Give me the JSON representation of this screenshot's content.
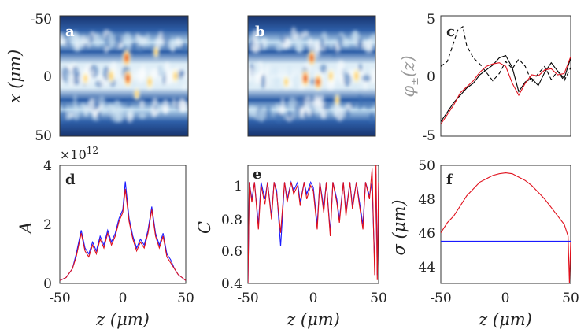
{
  "figure": {
    "shared_z_label": "z (μm)"
  },
  "chart_data": [
    {
      "id": "a",
      "type": "heatmap",
      "panel_label": "a",
      "ylabel": "x (μm)",
      "xlabel": "",
      "yticks": [
        "-50",
        "0",
        "50"
      ],
      "ylim": [
        -50,
        50
      ],
      "xlim": [
        -50,
        50
      ],
      "description_series": [
        {
          "name": "intensity",
          "values": [
            0.2,
            0.5,
            0.8,
            1.0,
            0.7,
            0.4
          ]
        }
      ],
      "hotspots": [
        {
          "z": 2,
          "x": -15,
          "v": 1.0
        },
        {
          "z": 3,
          "x": 2,
          "v": 1.0
        },
        {
          "z": -10,
          "x": 0,
          "v": 0.7
        },
        {
          "z": 20,
          "x": 5,
          "v": 0.7
        },
        {
          "z": 40,
          "x": 0,
          "v": 0.6
        },
        {
          "z": -30,
          "x": 2,
          "v": 0.5
        },
        {
          "z": 25,
          "x": -20,
          "v": 0.5
        },
        {
          "z": 10,
          "x": 15,
          "v": 0.5
        }
      ]
    },
    {
      "id": "b",
      "type": "heatmap",
      "panel_label": "b",
      "ylabel": "",
      "xlabel": "",
      "ylim": [
        -50,
        50
      ],
      "xlim": [
        -50,
        50
      ],
      "hotspots": [
        {
          "z": 0,
          "x": -15,
          "v": 0.9
        },
        {
          "z": -5,
          "x": 2,
          "v": 1.0
        },
        {
          "z": 5,
          "x": 5,
          "v": 0.9
        },
        {
          "z": 35,
          "x": 0,
          "v": 0.8
        },
        {
          "z": 15,
          "x": 0,
          "v": 0.6
        },
        {
          "z": -20,
          "x": 5,
          "v": 0.5
        },
        {
          "z": 20,
          "x": 20,
          "v": 0.5
        }
      ]
    },
    {
      "id": "c",
      "type": "line",
      "panel_label": "c",
      "ylabel": "φ±(z)",
      "ylabel_main": "φ",
      "ylabel_sub": "±",
      "ylabel_arg": "(z)",
      "yticks": [
        "5",
        "0",
        "-5"
      ],
      "ylim": [
        -5,
        5
      ],
      "xlim": [
        -50,
        50
      ],
      "series": [
        {
          "name": "phi_minus_dashed",
          "color": "#000000",
          "style": "dashed",
          "x": [
            -50,
            -45,
            -40,
            -37,
            -33,
            -30,
            -25,
            -20,
            -15,
            -10,
            -5,
            0,
            5,
            10,
            15,
            20,
            25,
            30,
            35,
            40,
            45,
            50
          ],
          "y": [
            0.8,
            1.2,
            2.8,
            3.8,
            4.1,
            2.5,
            1.5,
            1.0,
            0.3,
            -0.4,
            0.2,
            1.2,
            0.6,
            1.4,
            0.8,
            -0.5,
            0.2,
            0.8,
            -0.3,
            0.4,
            -0.4,
            0.7
          ]
        },
        {
          "name": "phi_plus_black",
          "color": "#000000",
          "style": "solid",
          "x": [
            -50,
            -45,
            -40,
            -35,
            -30,
            -25,
            -20,
            -15,
            -10,
            -5,
            0,
            5,
            10,
            15,
            20,
            25,
            30,
            35,
            40,
            45,
            50
          ],
          "y": [
            -3.8,
            -3.0,
            -2.2,
            -1.6,
            -1.0,
            -0.6,
            0.1,
            0.5,
            0.9,
            1.5,
            1.7,
            0.7,
            -1.3,
            -0.5,
            -0.2,
            -0.8,
            0.3,
            1.1,
            0.4,
            -0.2,
            1.5
          ]
        },
        {
          "name": "phi_plus_red",
          "color": "#e0101c",
          "style": "solid",
          "x": [
            -50,
            -45,
            -40,
            -35,
            -30,
            -25,
            -20,
            -15,
            -10,
            -5,
            0,
            5,
            10,
            15,
            20,
            25,
            30,
            35,
            40,
            45,
            50
          ],
          "y": [
            -4.0,
            -3.2,
            -2.4,
            -1.4,
            -0.9,
            -0.4,
            0.3,
            0.8,
            1.0,
            1.1,
            0.8,
            -0.6,
            -1.6,
            -0.6,
            0.1,
            0.0,
            0.5,
            0.6,
            0.1,
            0.2,
            1.6
          ]
        }
      ]
    },
    {
      "id": "d",
      "type": "line",
      "panel_label": "d",
      "ylabel": "A",
      "xlabel": "z (μm)",
      "xlabel_var": "z",
      "xlabel_unit": "(μm)",
      "scale_label": "×10",
      "scale_exp": "12",
      "yticks": [
        "4",
        "2",
        "0"
      ],
      "xticks": [
        "-50",
        "0",
        "50"
      ],
      "ylim": [
        0,
        4
      ],
      "xlim": [
        -50,
        50
      ],
      "series": [
        {
          "name": "blue",
          "color": "#1a1aff",
          "x": [
            -50,
            -45,
            -40,
            -37,
            -33,
            -30,
            -27,
            -24,
            -21,
            -18,
            -15,
            -12,
            -9,
            -6,
            -3,
            0,
            2,
            5,
            8,
            11,
            14,
            17,
            20,
            23,
            26,
            29,
            32,
            35,
            38,
            41,
            44,
            47,
            50
          ],
          "y": [
            0.1,
            0.2,
            0.5,
            1.0,
            1.8,
            1.2,
            1.0,
            1.4,
            1.1,
            1.6,
            1.3,
            1.8,
            1.4,
            1.7,
            2.2,
            2.5,
            3.45,
            2.2,
            1.6,
            1.2,
            1.5,
            1.3,
            1.8,
            2.6,
            1.7,
            1.3,
            1.7,
            1.0,
            0.8,
            0.5,
            0.3,
            0.2,
            0.1
          ]
        },
        {
          "name": "red",
          "color": "#e0101c",
          "x": [
            -50,
            -45,
            -40,
            -37,
            -33,
            -30,
            -27,
            -24,
            -21,
            -18,
            -15,
            -12,
            -9,
            -6,
            -3,
            0,
            2,
            5,
            8,
            11,
            14,
            17,
            20,
            23,
            26,
            29,
            32,
            35,
            38,
            41,
            44,
            47,
            50
          ],
          "y": [
            0.1,
            0.2,
            0.5,
            0.9,
            1.7,
            1.1,
            0.9,
            1.3,
            1.0,
            1.5,
            1.2,
            1.7,
            1.3,
            1.6,
            2.1,
            2.4,
            3.2,
            2.1,
            1.5,
            1.1,
            1.4,
            1.2,
            1.7,
            2.5,
            1.6,
            1.2,
            1.6,
            0.9,
            0.7,
            0.5,
            0.3,
            0.2,
            0.1
          ]
        }
      ]
    },
    {
      "id": "e",
      "type": "line",
      "panel_label": "e",
      "ylabel": "C",
      "xlabel": "z (μm)",
      "xlabel_var": "z",
      "xlabel_unit": "(μm)",
      "yticks": [
        "1",
        "0.8",
        "0.6",
        "0.4"
      ],
      "xticks": [
        "-50",
        "0",
        "50"
      ],
      "ylim": [
        0.4,
        1.1
      ],
      "xlim": [
        -50,
        50
      ],
      "series": [
        {
          "name": "blue",
          "color": "#1a1aff",
          "x": [
            -50,
            -49,
            -47,
            -45,
            -42,
            -40,
            -37,
            -35,
            -32,
            -30,
            -28,
            -25,
            -22,
            -20,
            -17,
            -15,
            -12,
            -10,
            -7,
            -5,
            -2,
            0,
            3,
            5,
            8,
            10,
            13,
            15,
            18,
            20,
            23,
            25,
            28,
            30,
            33,
            35,
            38,
            40,
            43,
            45,
            47,
            48,
            49,
            50
          ],
          "y": [
            0.4,
            1.0,
            0.9,
            1.0,
            0.75,
            1.0,
            0.9,
            1.0,
            0.8,
            1.0,
            0.95,
            0.62,
            1.0,
            0.9,
            1.0,
            0.95,
            1.0,
            0.88,
            1.0,
            0.93,
            1.0,
            0.97,
            0.75,
            1.0,
            0.85,
            1.0,
            0.7,
            1.0,
            0.9,
            0.78,
            1.0,
            0.82,
            1.0,
            0.86,
            1.0,
            0.9,
            0.75,
            1.0,
            0.92,
            1.0,
            0.5,
            1.05,
            0.45,
            1.0
          ]
        },
        {
          "name": "red",
          "color": "#e0101c",
          "x": [
            -50,
            -49,
            -47,
            -45,
            -42,
            -40,
            -37,
            -35,
            -32,
            -30,
            -28,
            -25,
            -22,
            -20,
            -17,
            -15,
            -12,
            -10,
            -7,
            -5,
            -2,
            0,
            3,
            5,
            8,
            10,
            13,
            15,
            18,
            20,
            23,
            25,
            28,
            30,
            33,
            35,
            38,
            40,
            43,
            45,
            47,
            48,
            49,
            50
          ],
          "y": [
            0.4,
            1.0,
            0.88,
            1.0,
            0.72,
            0.98,
            0.87,
            1.0,
            0.78,
            1.0,
            0.93,
            0.7,
            1.0,
            0.88,
            1.0,
            0.93,
            0.98,
            0.86,
            1.0,
            0.9,
            0.98,
            0.95,
            0.72,
            1.0,
            0.82,
            1.0,
            0.68,
            1.0,
            0.88,
            0.76,
            1.0,
            0.8,
            1.0,
            0.84,
            1.0,
            0.88,
            0.72,
            1.0,
            0.9,
            1.08,
            0.45,
            1.1,
            0.42,
            1.0
          ]
        }
      ]
    },
    {
      "id": "f",
      "type": "line",
      "panel_label": "f",
      "ylabel": "σ (μm)",
      "ylabel_var": "σ",
      "ylabel_unit": "(μm)",
      "xlabel": "z (μm)",
      "xlabel_var": "z",
      "xlabel_unit": "(μm)",
      "yticks": [
        "50",
        "48",
        "46",
        "44"
      ],
      "xticks": [
        "-50",
        "0",
        "50"
      ],
      "ylim": [
        43,
        50
      ],
      "xlim": [
        -50,
        50
      ],
      "series": [
        {
          "name": "red",
          "color": "#e0101c",
          "x": [
            -50,
            -45,
            -40,
            -35,
            -30,
            -25,
            -20,
            -15,
            -10,
            -5,
            0,
            5,
            10,
            15,
            20,
            25,
            30,
            35,
            40,
            45,
            48,
            49,
            50
          ],
          "y": [
            46.0,
            46.6,
            47.0,
            47.6,
            48.2,
            48.6,
            49.0,
            49.2,
            49.4,
            49.5,
            49.55,
            49.5,
            49.3,
            49.1,
            48.8,
            48.4,
            48.0,
            47.5,
            47.0,
            46.5,
            45.8,
            43.0,
            45.5
          ]
        },
        {
          "name": "blue",
          "color": "#1a1aff",
          "x": [
            -50,
            50
          ],
          "y": [
            45.5,
            45.5
          ]
        }
      ]
    }
  ]
}
